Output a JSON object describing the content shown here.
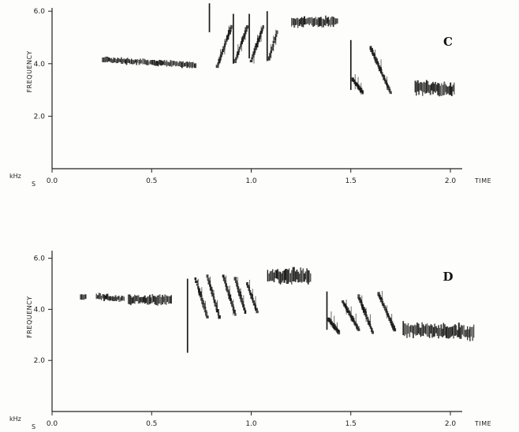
{
  "chart_data": [
    {
      "type": "spectrogram",
      "panel_label": "C",
      "xlabel": "TIME",
      "ylabel": "FREQUENCY",
      "y_unit": "kHz",
      "x_unit": "S",
      "xlim": [
        0,
        2.2
      ],
      "ylim": [
        0,
        7
      ],
      "x_ticks": [
        0.0,
        0.5,
        1.0,
        1.5,
        2.0
      ],
      "x_tick_labels": [
        "0.0",
        "0.5",
        "1.0",
        "1.5",
        "2.0"
      ],
      "y_ticks": [
        2.0,
        4.0,
        6.0
      ],
      "y_tick_labels": [
        "2.0",
        "4.0",
        "6.0"
      ],
      "notes": [
        {
          "kind": "band",
          "t_start": 0.25,
          "t_end": 0.72,
          "f_start": 4.15,
          "f_end": 3.95,
          "thickness": 0.22
        },
        {
          "kind": "spike",
          "t": 0.79,
          "f_low": 5.2,
          "f_high": 6.3
        },
        {
          "kind": "sweep",
          "t_start": 0.83,
          "t_end": 0.9,
          "f_start": 3.9,
          "f_end": 5.4
        },
        {
          "kind": "spike",
          "t": 0.91,
          "f_low": 4.0,
          "f_high": 5.9
        },
        {
          "kind": "sweep",
          "t_start": 0.92,
          "t_end": 0.98,
          "f_start": 4.1,
          "f_end": 5.4
        },
        {
          "kind": "spike",
          "t": 0.99,
          "f_low": 4.2,
          "f_high": 5.9
        },
        {
          "kind": "sweep",
          "t_start": 1.0,
          "t_end": 1.06,
          "f_start": 4.1,
          "f_end": 5.4
        },
        {
          "kind": "spike",
          "t": 1.08,
          "f_low": 4.1,
          "f_high": 6.0
        },
        {
          "kind": "sweep",
          "t_start": 1.09,
          "t_end": 1.13,
          "f_start": 4.2,
          "f_end": 5.2
        },
        {
          "kind": "band",
          "t_start": 1.2,
          "t_end": 1.43,
          "f_start": 5.6,
          "f_end": 5.6,
          "thickness": 0.35
        },
        {
          "kind": "spike",
          "t": 1.5,
          "f_low": 3.0,
          "f_high": 4.9
        },
        {
          "kind": "sweep",
          "t_start": 1.51,
          "t_end": 1.56,
          "f_start": 3.4,
          "f_end": 2.9
        },
        {
          "kind": "sweep",
          "t_start": 1.6,
          "t_end": 1.7,
          "f_start": 4.6,
          "f_end": 2.9
        },
        {
          "kind": "band",
          "t_start": 1.82,
          "t_end": 2.02,
          "f_start": 3.1,
          "f_end": 3.0,
          "thickness": 0.45
        }
      ]
    },
    {
      "type": "spectrogram",
      "panel_label": "D",
      "xlabel": "TIME",
      "ylabel": "FREQUENCY",
      "y_unit": "kHz",
      "x_unit": "S",
      "xlim": [
        0,
        2.2
      ],
      "ylim": [
        0,
        7
      ],
      "x_ticks": [
        0.0,
        0.5,
        1.0,
        1.5,
        2.0
      ],
      "x_tick_labels": [
        "0.0",
        "0.5",
        "1.0",
        "1.5",
        "2.0"
      ],
      "y_ticks": [
        2.0,
        4.0,
        6.0
      ],
      "y_tick_labels": [
        "2.0",
        "4.0",
        "6.0"
      ],
      "notes": [
        {
          "kind": "band",
          "t_start": 0.14,
          "t_end": 0.17,
          "f_start": 4.5,
          "f_end": 4.5,
          "thickness": 0.2
        },
        {
          "kind": "band",
          "t_start": 0.22,
          "t_end": 0.36,
          "f_start": 4.5,
          "f_end": 4.4,
          "thickness": 0.25
        },
        {
          "kind": "band",
          "t_start": 0.38,
          "t_end": 0.6,
          "f_start": 4.4,
          "f_end": 4.35,
          "thickness": 0.35
        },
        {
          "kind": "spike",
          "t": 0.68,
          "f_low": 2.3,
          "f_high": 5.2
        },
        {
          "kind": "sweep",
          "t_start": 0.72,
          "t_end": 0.78,
          "f_start": 5.2,
          "f_end": 3.7
        },
        {
          "kind": "sweep",
          "t_start": 0.78,
          "t_end": 0.84,
          "f_start": 5.3,
          "f_end": 3.7
        },
        {
          "kind": "sweep",
          "t_start": 0.86,
          "t_end": 0.92,
          "f_start": 5.3,
          "f_end": 3.8
        },
        {
          "kind": "sweep",
          "t_start": 0.92,
          "t_end": 0.97,
          "f_start": 5.2,
          "f_end": 3.9
        },
        {
          "kind": "sweep",
          "t_start": 0.98,
          "t_end": 1.03,
          "f_start": 5.0,
          "f_end": 3.9
        },
        {
          "kind": "band",
          "t_start": 1.08,
          "t_end": 1.3,
          "f_start": 5.3,
          "f_end": 5.3,
          "thickness": 0.55
        },
        {
          "kind": "spike",
          "t": 1.38,
          "f_low": 3.2,
          "f_high": 4.7
        },
        {
          "kind": "sweep",
          "t_start": 1.39,
          "t_end": 1.44,
          "f_start": 3.6,
          "f_end": 3.1
        },
        {
          "kind": "sweep",
          "t_start": 1.46,
          "t_end": 1.54,
          "f_start": 4.3,
          "f_end": 3.2
        },
        {
          "kind": "sweep",
          "t_start": 1.54,
          "t_end": 1.61,
          "f_start": 4.5,
          "f_end": 3.1
        },
        {
          "kind": "sweep",
          "t_start": 1.64,
          "t_end": 1.72,
          "f_start": 4.6,
          "f_end": 3.2
        },
        {
          "kind": "band",
          "t_start": 1.76,
          "t_end": 2.12,
          "f_start": 3.2,
          "f_end": 3.1,
          "thickness": 0.5
        }
      ]
    }
  ],
  "colors": {
    "ink": "#1a1a1a",
    "paper": "#fdfdfb"
  }
}
